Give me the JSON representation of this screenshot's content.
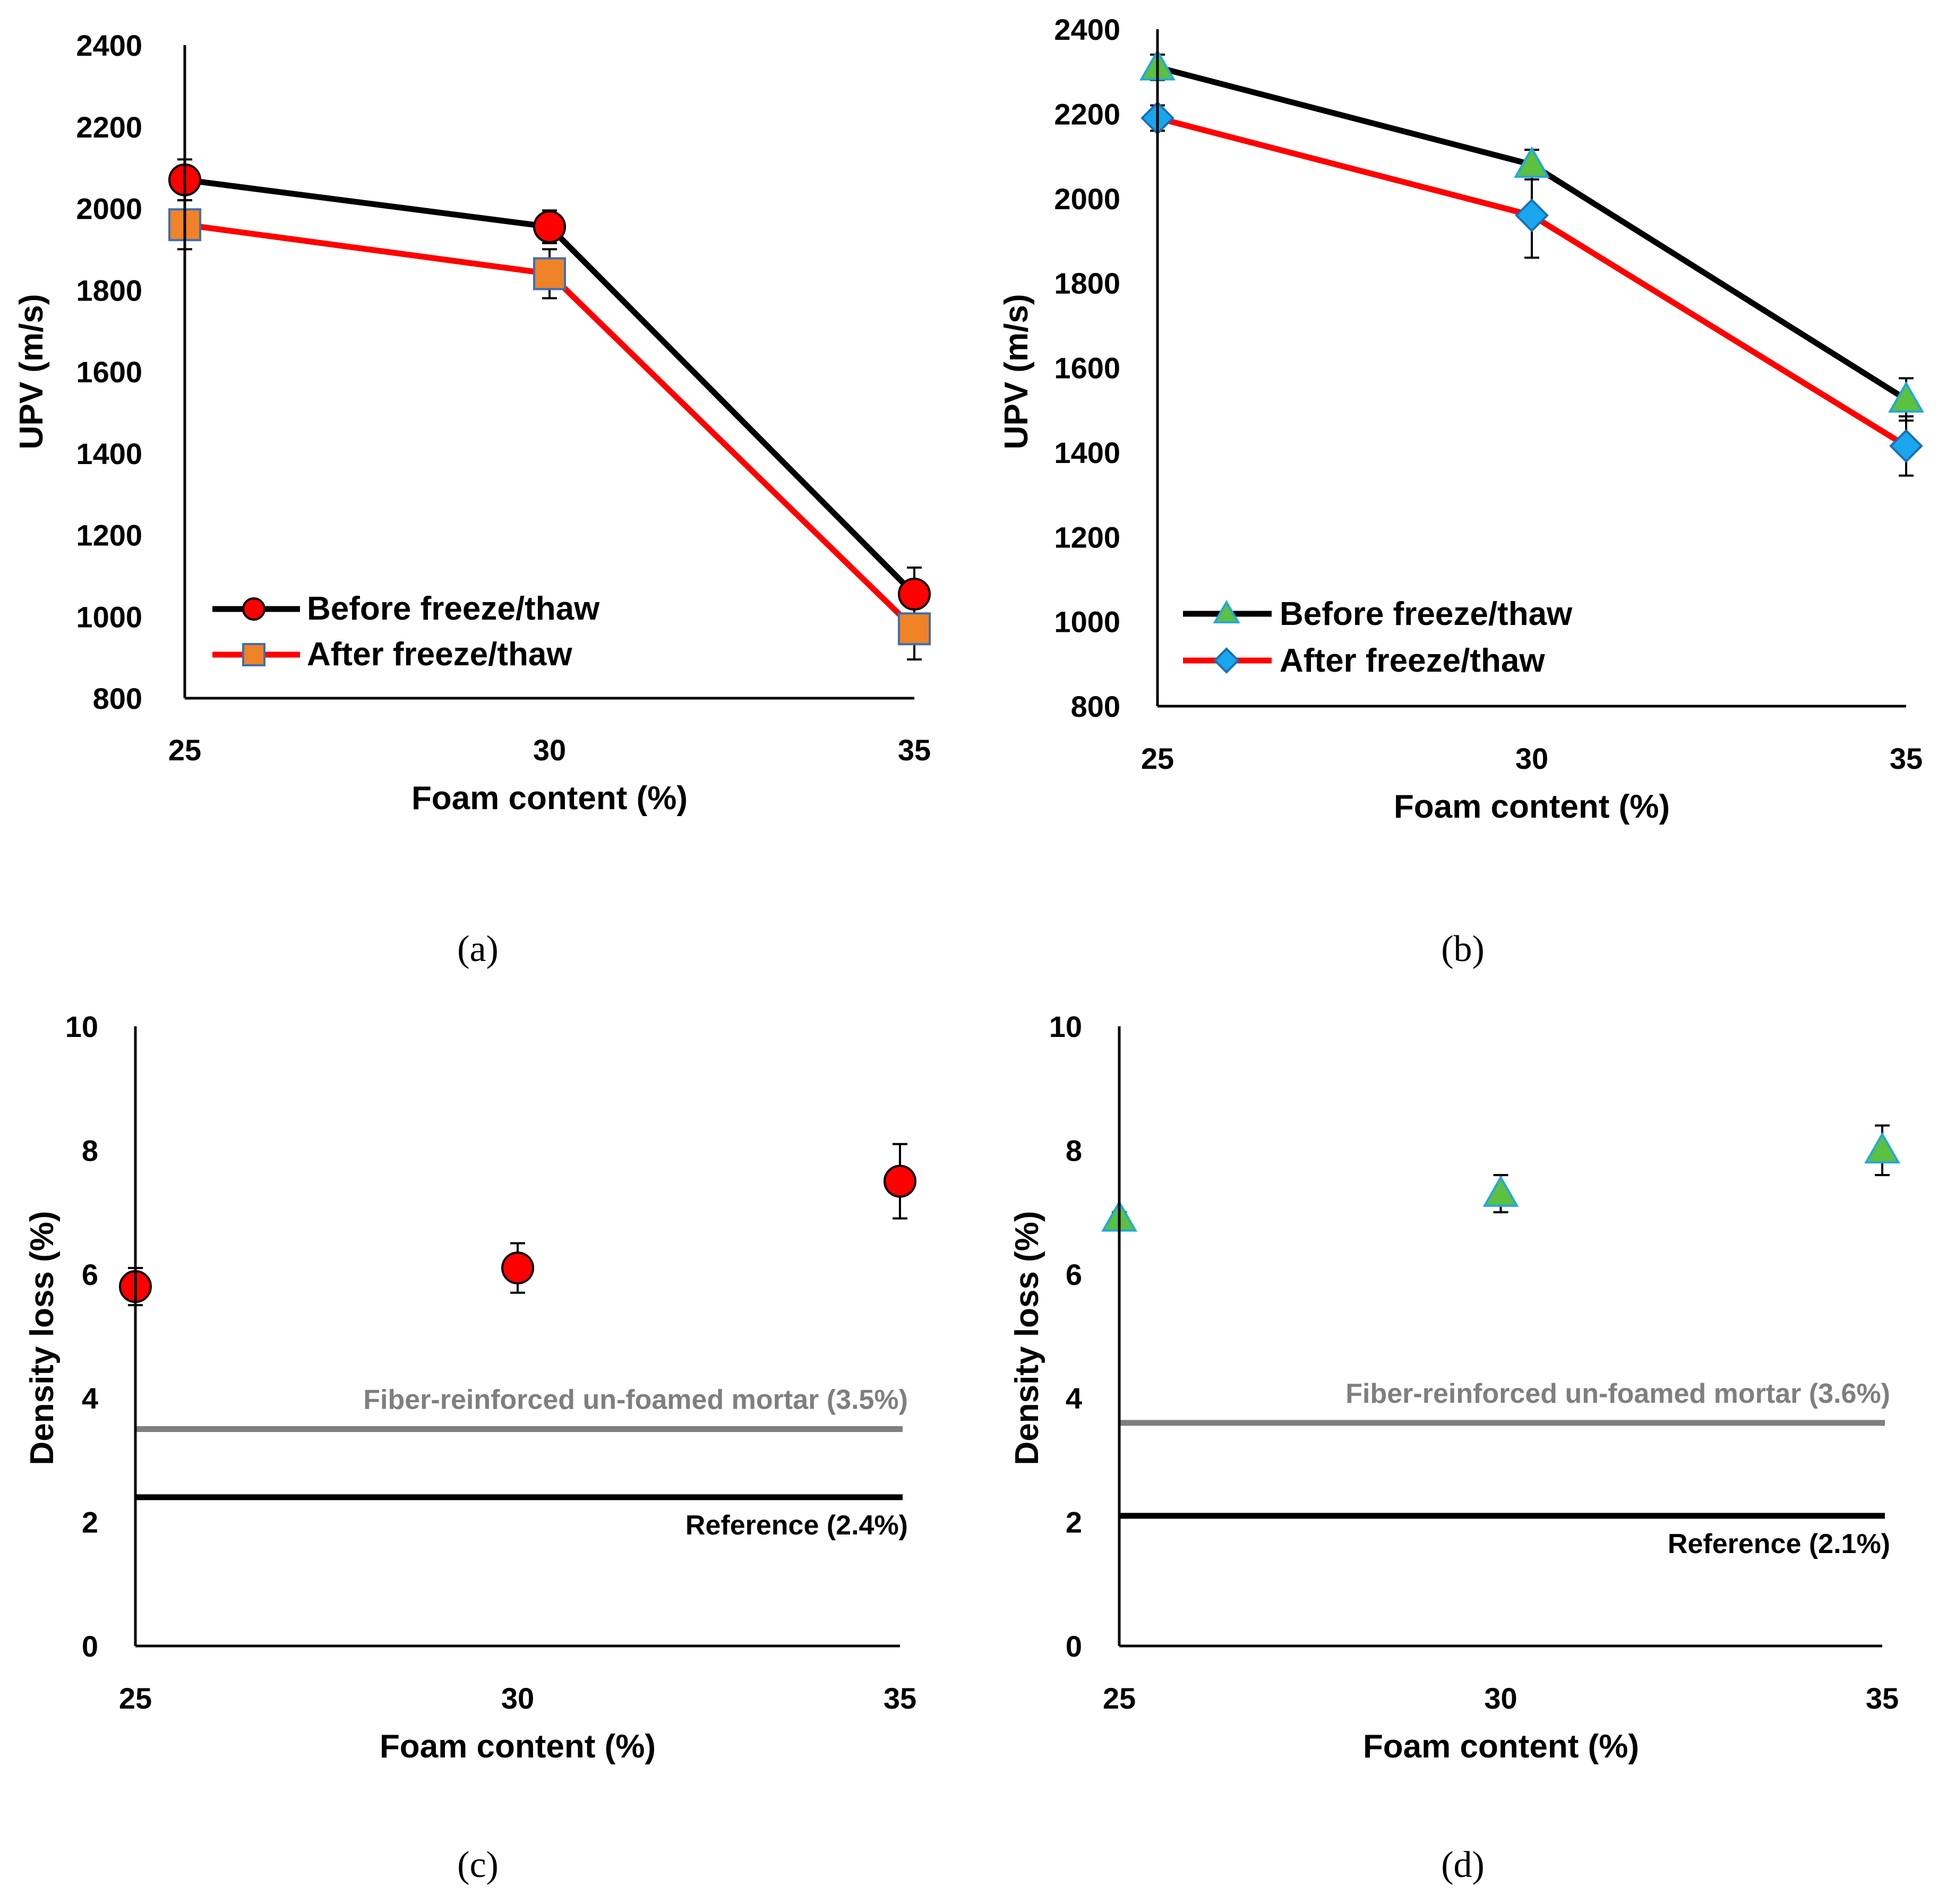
{
  "colors": {
    "before_line": "#000000",
    "after_line": "#ff0000",
    "red_marker": "#ff0000",
    "orange_marker": "#f08228",
    "square_edge": "#3a6fb5",
    "green_marker": "#5cc040",
    "triangle_edge": "#1fa8e0",
    "blue_marker": "#1aa6ee",
    "mortar_line": "#7f7f7f",
    "reference_line": "#000000"
  },
  "chart_data": [
    {
      "id": "a",
      "type": "line",
      "panel_label": "(a)",
      "xlabel": "Foam content (%)",
      "ylabel": "UPV (m/s)",
      "x": [
        25,
        30,
        35
      ],
      "xticks": [
        "25",
        "30",
        "35"
      ],
      "ylim": [
        800,
        2400
      ],
      "yticks": [
        "800",
        "1000",
        "1200",
        "1400",
        "1600",
        "1800",
        "2000",
        "2200",
        "2400"
      ],
      "legend_position": "bottom-left",
      "series": [
        {
          "name": "Before freeze/thaw",
          "values": [
            2070,
            1955,
            1055
          ],
          "errors": [
            50,
            40,
            65
          ],
          "marker": "circle",
          "line_color": "#000000",
          "marker_fill": "#ff0000",
          "marker_edge": "#000000"
        },
        {
          "name": "After freeze/thaw",
          "values": [
            1960,
            1840,
            970
          ],
          "errors": [
            60,
            60,
            75
          ],
          "marker": "square",
          "line_color": "#ff0000",
          "marker_fill": "#f08228",
          "marker_edge": "#3a6fb5"
        }
      ]
    },
    {
      "id": "b",
      "type": "line",
      "panel_label": "(b)",
      "xlabel": "Foam content (%)",
      "ylabel": "UPV (m/s)",
      "x": [
        25,
        30,
        35
      ],
      "xticks": [
        "25",
        "30",
        "35"
      ],
      "ylim": [
        800,
        2400
      ],
      "yticks": [
        "800",
        "1000",
        "1200",
        "1400",
        "1600",
        "1800",
        "2000",
        "2200",
        "2400"
      ],
      "legend_position": "bottom-left",
      "series": [
        {
          "name": "Before freeze/thaw",
          "values": [
            2310,
            2080,
            1525
          ],
          "errors": [
            30,
            35,
            50
          ],
          "marker": "triangle",
          "line_color": "#000000",
          "marker_fill": "#5cc040",
          "marker_edge": "#1fa8e0"
        },
        {
          "name": "After freeze/thaw",
          "values": [
            2190,
            1960,
            1415
          ],
          "errors": [
            30,
            100,
            70
          ],
          "marker": "diamond",
          "line_color": "#ff0000",
          "marker_fill": "#1aa6ee",
          "marker_edge": "#1a6fb0"
        }
      ]
    },
    {
      "id": "c",
      "type": "scatter",
      "panel_label": "(c)",
      "xlabel": "Foam content (%)",
      "ylabel": "Density loss (%)",
      "x": [
        25,
        30,
        35
      ],
      "xticks": [
        "25",
        "30",
        "35"
      ],
      "ylim": [
        0,
        10
      ],
      "yticks": [
        "0",
        "2",
        "4",
        "6",
        "8",
        "10"
      ],
      "series": [
        {
          "name": "Density loss",
          "values": [
            5.8,
            6.1,
            7.5
          ],
          "errors": [
            0.3,
            0.4,
            0.6
          ],
          "marker": "circle",
          "marker_fill": "#ff0000",
          "marker_edge": "#000000"
        }
      ],
      "reference_lines": [
        {
          "label": "Fiber-reinforced un-foamed mortar  (3.5%)",
          "value": 3.5,
          "color": "#7f7f7f",
          "label_side": "above"
        },
        {
          "label": "Reference  (2.4%)",
          "value": 2.4,
          "color": "#000000",
          "label_side": "below"
        }
      ]
    },
    {
      "id": "d",
      "type": "scatter",
      "panel_label": "(d)",
      "xlabel": "Foam content (%)",
      "ylabel": "Density loss (%)",
      "x": [
        25,
        30,
        35
      ],
      "xticks": [
        "25",
        "30",
        "35"
      ],
      "ylim": [
        0,
        10
      ],
      "yticks": [
        "0",
        "2",
        "4",
        "6",
        "8",
        "10"
      ],
      "series": [
        {
          "name": "Density loss",
          "values": [
            6.9,
            7.3,
            8.0
          ],
          "errors": [
            0.1,
            0.3,
            0.4
          ],
          "marker": "triangle",
          "marker_fill": "#5cc040",
          "marker_edge": "#1fa8e0"
        }
      ],
      "reference_lines": [
        {
          "label": "Fiber-reinforced un-foamed mortar  (3.6%)",
          "value": 3.6,
          "color": "#7f7f7f",
          "label_side": "above"
        },
        {
          "label": "Reference  (2.1%)",
          "value": 2.1,
          "color": "#000000",
          "label_side": "below"
        }
      ]
    }
  ]
}
